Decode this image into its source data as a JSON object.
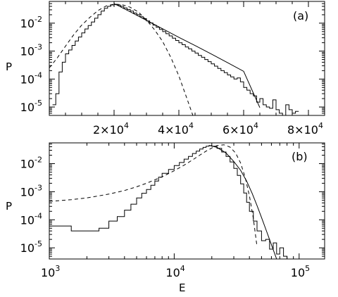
{
  "chart_data": [
    {
      "type": "line",
      "panel_label": "(a)",
      "xlabel": "",
      "ylabel": "P",
      "x_scale": "linear",
      "y_scale": "log",
      "xlim": [
        0,
        85000
      ],
      "ylim": [
        5e-06,
        0.06
      ],
      "x_ticks": [
        20000,
        40000,
        60000,
        80000
      ],
      "x_tick_labels": [
        {
          "base": "2×10",
          "exp": "4"
        },
        {
          "base": "4×10",
          "exp": "4"
        },
        {
          "base": "6×10",
          "exp": "4"
        },
        {
          "base": "8×10",
          "exp": "4"
        }
      ],
      "y_ticks": [
        1e-05,
        0.0001,
        0.001,
        0.01
      ],
      "y_tick_labels": [
        {
          "base": "10",
          "exp": "-5"
        },
        {
          "base": "10",
          "exp": "-4"
        },
        {
          "base": "10",
          "exp": "-3"
        },
        {
          "base": "10",
          "exp": "-2"
        }
      ],
      "series": [
        {
          "style": "histogram",
          "x": [
            1000,
            2000,
            3000,
            4000,
            5000,
            6000,
            7000,
            8000,
            9000,
            10000,
            11000,
            12000,
            13000,
            14000,
            15000,
            16000,
            17000,
            18000,
            19000,
            20000,
            21000,
            22000,
            23000,
            24000,
            25000,
            26000,
            27000,
            28000,
            29000,
            30000,
            31000,
            32000,
            33000,
            34000,
            35000,
            36000,
            37000,
            38000,
            39000,
            40000,
            41000,
            42000,
            43000,
            44000,
            45000,
            46000,
            47000,
            48000,
            49000,
            50000,
            51000,
            52000,
            53000,
            54000,
            55000,
            56000,
            57000,
            58000,
            59000,
            60000,
            61000,
            62000,
            63000,
            64000,
            65000,
            66000,
            67000,
            68000,
            69000,
            70000,
            71000,
            72000,
            73000,
            74000,
            75000,
            76000
          ],
          "y": [
            1.2e-05,
            3e-05,
            0.00018,
            0.0004,
            0.0008,
            0.0011,
            0.0016,
            0.0023,
            0.0032,
            0.0045,
            0.0062,
            0.0082,
            0.011,
            0.015,
            0.02,
            0.027,
            0.034,
            0.04,
            0.045,
            0.046,
            0.044,
            0.04,
            0.035,
            0.031,
            0.027,
            0.023,
            0.02,
            0.017,
            0.0145,
            0.012,
            0.0102,
            0.0085,
            0.0071,
            0.006,
            0.005,
            0.0042,
            0.0035,
            0.0029,
            0.0024,
            0.002,
            0.0017,
            0.0014,
            0.0012,
            0.001,
            0.00085,
            0.0007,
            0.0006,
            0.0005,
            0.00042,
            0.00035,
            0.00029,
            0.00024,
            0.0002,
            0.00017,
            0.00014,
            0.00012,
            0.0001,
            0.00011,
            8e-05,
            5e-05,
            4e-05,
            3e-05,
            2.5e-05,
            1.5e-05,
            2e-05,
            1.2e-05,
            1e-05,
            9e-06,
            1.8e-05,
            8e-06,
            6e-06,
            5e-06,
            1.2e-05,
            8e-06,
            6e-06,
            7e-06
          ]
        },
        {
          "style": "solid",
          "x": [
            20000,
            25000,
            30000,
            35000,
            40000,
            45000,
            50000,
            55000,
            60000,
            65000
          ],
          "y": [
            0.05,
            0.0255,
            0.0126,
            0.0063,
            0.0031,
            0.00158,
            0.00079,
            0.00039,
            0.00019,
            9.5e-06
          ]
        },
        {
          "style": "dashed",
          "x": [
            0,
            2500,
            5000,
            7500,
            10000,
            12500,
            15000,
            17500,
            20000,
            22500,
            25000,
            27500,
            30000,
            32500,
            35000,
            37500,
            40000,
            42500,
            45000
          ],
          "y": [
            0.00025,
            0.00058,
            0.0015,
            0.0038,
            0.0085,
            0.016,
            0.028,
            0.041,
            0.048,
            0.046,
            0.037,
            0.025,
            0.013,
            0.0058,
            0.0022,
            0.0006,
            0.00013,
            2e-05,
            3e-06
          ]
        }
      ]
    },
    {
      "type": "line",
      "panel_label": "(b)",
      "xlabel": "E",
      "ylabel": "P",
      "x_scale": "log",
      "y_scale": "log",
      "xlim": [
        1000,
        160000
      ],
      "ylim": [
        4e-06,
        0.055
      ],
      "x_ticks": [
        1000,
        10000,
        100000
      ],
      "x_tick_labels": [
        {
          "base": "10",
          "exp": "3"
        },
        {
          "base": "10",
          "exp": "4"
        },
        {
          "base": "10",
          "exp": "5"
        }
      ],
      "y_ticks": [
        1e-05,
        0.0001,
        0.001,
        0.01
      ],
      "y_tick_labels": [
        {
          "base": "10",
          "exp": "-5"
        },
        {
          "base": "10",
          "exp": "-4"
        },
        {
          "base": "10",
          "exp": "-3"
        },
        {
          "base": "10",
          "exp": "-2"
        }
      ],
      "series": [
        {
          "style": "histogram",
          "x": [
            1000,
            1500,
            2500,
            3000,
            3500,
            4000,
            4500,
            5000,
            5500,
            6000,
            6500,
            7000,
            7500,
            8000,
            9000,
            10000,
            11000,
            12000,
            13000,
            14000,
            15000,
            16000,
            17000,
            18000,
            19000,
            20000,
            22000,
            24000,
            26000,
            28000,
            30000,
            32000,
            34000,
            36000,
            38000,
            40000,
            43000,
            46000,
            50000,
            54000,
            58000,
            62000,
            66000,
            70000,
            75000,
            80000
          ],
          "y": [
            6e-05,
            4e-05,
            5e-05,
            9e-05,
            0.00013,
            0.00022,
            0.00036,
            0.0006,
            0.00088,
            0.0012,
            0.0017,
            0.0024,
            0.0033,
            0.0045,
            0.0062,
            0.0085,
            0.011,
            0.0145,
            0.018,
            0.023,
            0.028,
            0.033,
            0.038,
            0.042,
            0.044,
            0.042,
            0.035,
            0.026,
            0.018,
            0.0115,
            0.0068,
            0.0038,
            0.0019,
            0.0009,
            0.00042,
            0.0002,
            9e-05,
            4e-05,
            1.8e-05,
            2e-05,
            9e-06,
            1.5e-05,
            6e-06,
            1e-05,
            5e-06,
            4e-06
          ]
        },
        {
          "style": "solid",
          "x": [
            19000,
            22000,
            26000,
            30000,
            34000,
            38000,
            42000,
            46000,
            50000,
            55000,
            60000,
            66000
          ],
          "y": [
            0.045,
            0.038,
            0.024,
            0.012,
            0.0058,
            0.0024,
            0.00088,
            0.00032,
            0.00012,
            3.8e-05,
            1.3e-05,
            4e-06
          ]
        },
        {
          "style": "dashed",
          "x": [
            1000,
            1500,
            2000,
            3000,
            4000,
            5000,
            6000,
            8000,
            10000,
            12000,
            14000,
            16000,
            18000,
            20000,
            22000,
            25000,
            28000,
            31000,
            34000,
            37000,
            40000,
            43000,
            46000
          ],
          "y": [
            0.00045,
            0.00052,
            0.0006,
            0.00082,
            0.0011,
            0.0015,
            0.002,
            0.0034,
            0.0056,
            0.0088,
            0.0135,
            0.02,
            0.028,
            0.036,
            0.044,
            0.047,
            0.039,
            0.024,
            0.0105,
            0.0032,
            0.00072,
            0.00011,
            1.1e-05
          ]
        }
      ]
    }
  ]
}
